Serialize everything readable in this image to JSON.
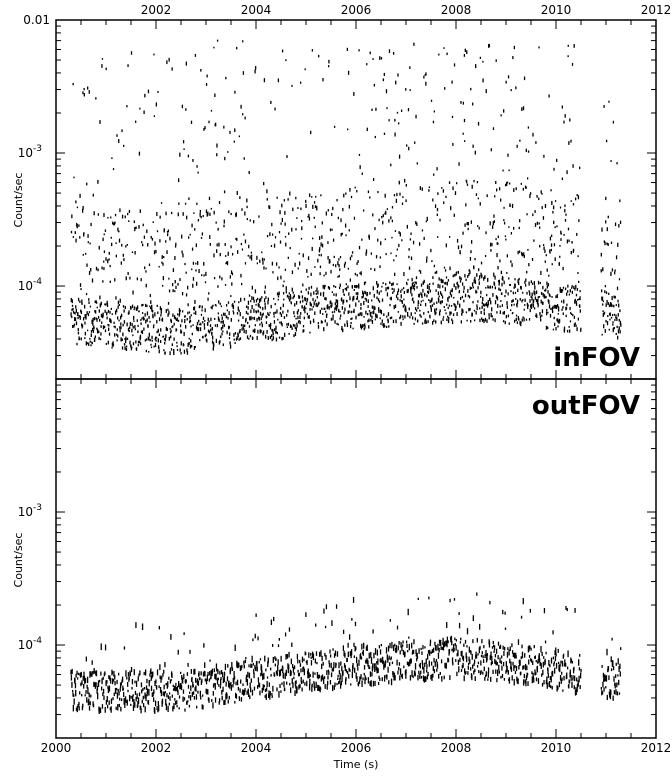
{
  "chart_data": {
    "type": "scatter",
    "x_label": "Time (s)",
    "x_axis_range": [
      2000,
      2012
    ],
    "x_ticks": [
      "2000",
      "2002",
      "2004",
      "2006",
      "2008",
      "2010",
      "2012"
    ],
    "top_ticks": [
      "2002",
      "2004",
      "2006",
      "2008",
      "2010",
      "2012"
    ],
    "x_data_span": [
      2000.3,
      2011.3
    ],
    "observation_gap": [
      2010.5,
      2010.9
    ],
    "panels": [
      {
        "name": "inFOV",
        "y_label": "Count/sec",
        "y_scale": "log",
        "y_axis_range": [
          2e-05,
          0.01
        ],
        "y_ticks": [
          {
            "value": 0.0001,
            "label": "10",
            "exp": "-4"
          },
          {
            "value": 0.001,
            "label": "10",
            "exp": "-3"
          },
          {
            "value": 0.01,
            "label": "0.01",
            "exp": ""
          }
        ],
        "baseline": [
          [
            2000.3,
            5.5e-05
          ],
          [
            2002.5,
            4.5e-05
          ],
          [
            2003.0,
            4.8e-05
          ],
          [
            2004.0,
            5.5e-05
          ],
          [
            2005.0,
            6.5e-05
          ],
          [
            2006.0,
            7e-05
          ],
          [
            2007.0,
            7.5e-05
          ],
          [
            2008.0,
            8e-05
          ],
          [
            2009.0,
            7.8e-05
          ],
          [
            2010.0,
            7e-05
          ],
          [
            2010.5,
            6.5e-05
          ],
          [
            2011.3,
            6e-05
          ]
        ],
        "max_rate_approx": 0.007
      },
      {
        "name": "outFOV",
        "y_label": "Count/sec",
        "y_scale": "log",
        "y_axis_range": [
          2e-05,
          0.01
        ],
        "y_ticks": [
          {
            "value": 0.0001,
            "label": "10",
            "exp": "-4"
          },
          {
            "value": 0.001,
            "label": "10",
            "exp": "-3"
          }
        ],
        "baseline": [
          [
            2000.3,
            4.5e-05
          ],
          [
            2002.5,
            4.5e-05
          ],
          [
            2003.0,
            4.8e-05
          ],
          [
            2004.0,
            5.5e-05
          ],
          [
            2005.0,
            6.3e-05
          ],
          [
            2006.0,
            7e-05
          ],
          [
            2007.0,
            7.5e-05
          ],
          [
            2008.0,
            8e-05
          ],
          [
            2009.0,
            7.5e-05
          ],
          [
            2010.0,
            6.5e-05
          ],
          [
            2010.5,
            6e-05
          ],
          [
            2011.3,
            5.5e-05
          ]
        ],
        "max_rate_approx": 0.00025
      }
    ]
  }
}
